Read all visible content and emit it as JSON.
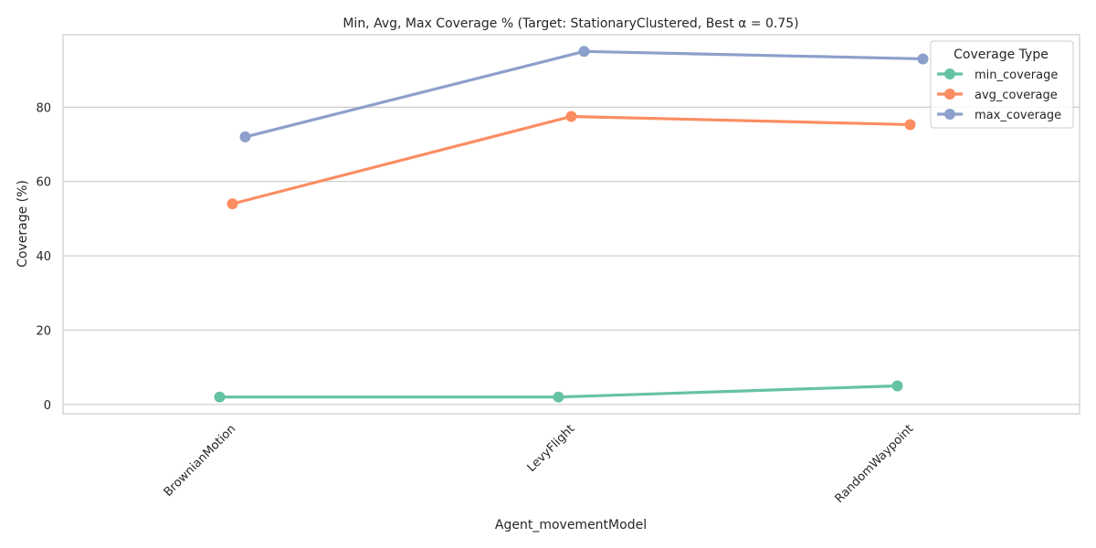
{
  "chart_data": {
    "type": "line",
    "title": "Min, Avg, Max Coverage % (Target: StationaryClustered, Best α = 0.75)",
    "xlabel": "Agent_movementModel",
    "ylabel": "Coverage (%)",
    "categories": [
      "BrownianMotion",
      "LevyFlight",
      "RandomWaypoint"
    ],
    "ylim": [
      -2.5,
      99.5
    ],
    "yticks": [
      0,
      20,
      40,
      60,
      80
    ],
    "grid": "horizontal",
    "legend": {
      "title": "Coverage Type",
      "placement": "top-right"
    },
    "series": [
      {
        "name": "min_coverage",
        "color": "#66c2a5",
        "values": [
          2,
          2,
          5
        ]
      },
      {
        "name": "avg_coverage",
        "color": "#fc8d62",
        "values": [
          54,
          77.5,
          75.3
        ]
      },
      {
        "name": "max_coverage",
        "color": "#8da0cb",
        "values": [
          72,
          95,
          93
        ]
      }
    ]
  }
}
